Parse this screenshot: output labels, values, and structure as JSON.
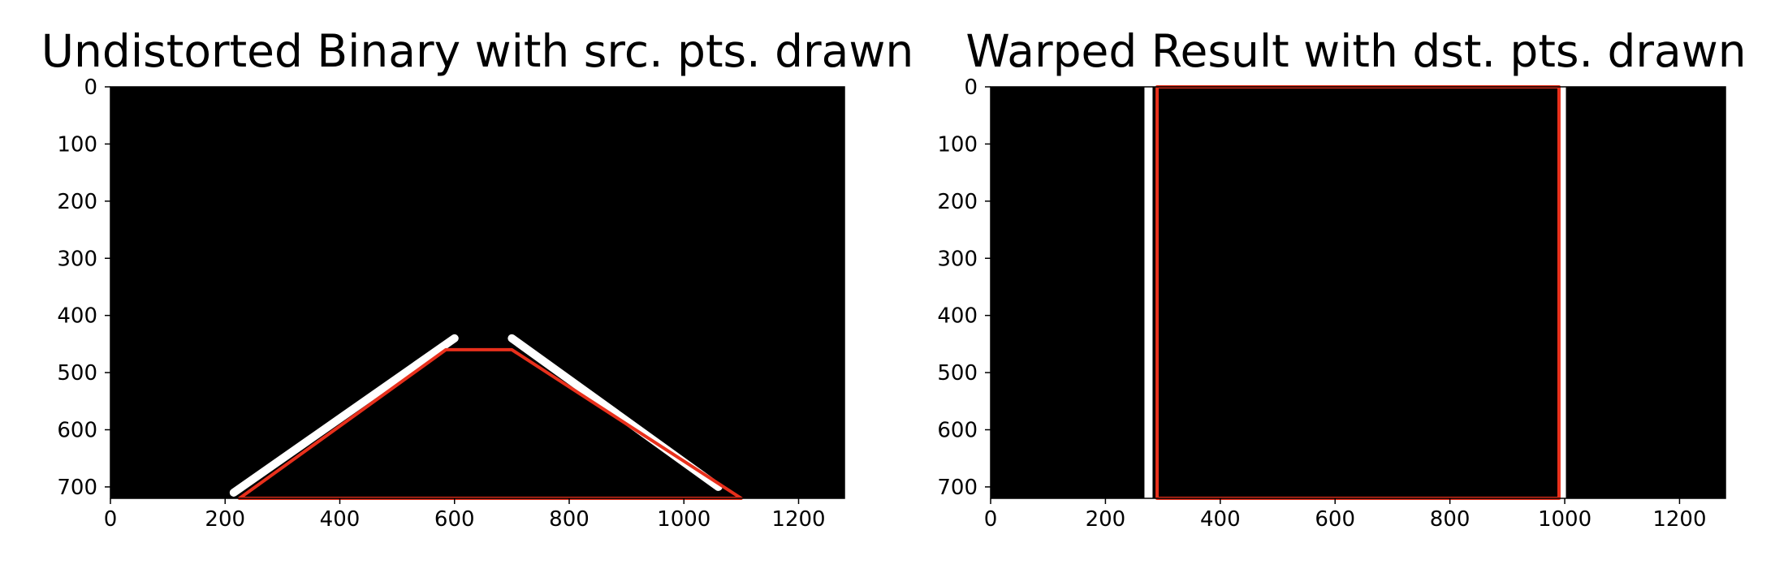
{
  "chart_data": [
    {
      "type": "image",
      "title": "Undistorted Binary with src. pts. drawn",
      "xlim": [
        0,
        1280
      ],
      "ylim": [
        720,
        0
      ],
      "x_ticks": [
        "0",
        "200",
        "400",
        "600",
        "800",
        "1000",
        "1200"
      ],
      "y_ticks": [
        "0",
        "100",
        "200",
        "300",
        "400",
        "500",
        "600",
        "700"
      ],
      "image_background": "#000000",
      "overlay_color": "#e8301c",
      "overlay_polygon": [
        [
          225,
          720
        ],
        [
          585,
          460
        ],
        [
          700,
          460
        ],
        [
          1100,
          720
        ]
      ],
      "lane_lines": [
        {
          "name": "",
          "points": [
            [
              215,
              710
            ],
            [
              600,
              440
            ]
          ]
        },
        {
          "name": "",
          "points": [
            [
              1060,
              700
            ],
            [
              700,
              440
            ]
          ]
        }
      ]
    },
    {
      "type": "image",
      "title": "Warped Result with dst. pts. drawn",
      "xlim": [
        0,
        1280
      ],
      "ylim": [
        720,
        0
      ],
      "x_ticks": [
        "0",
        "200",
        "400",
        "600",
        "800",
        "1000",
        "1200"
      ],
      "y_ticks": [
        "0",
        "100",
        "200",
        "300",
        "400",
        "500",
        "600",
        "700"
      ],
      "image_background": "#000000",
      "overlay_color": "#e8301c",
      "overlay_polygon": [
        [
          290,
          720
        ],
        [
          290,
          0
        ],
        [
          990,
          0
        ],
        [
          990,
          720
        ]
      ],
      "lane_lines": [
        {
          "name": "",
          "points": [
            [
              275,
              720
            ],
            [
              275,
              0
            ]
          ]
        },
        {
          "name": "",
          "points": [
            [
              995,
              0
            ],
            [
              995,
              720
            ]
          ]
        }
      ]
    }
  ]
}
